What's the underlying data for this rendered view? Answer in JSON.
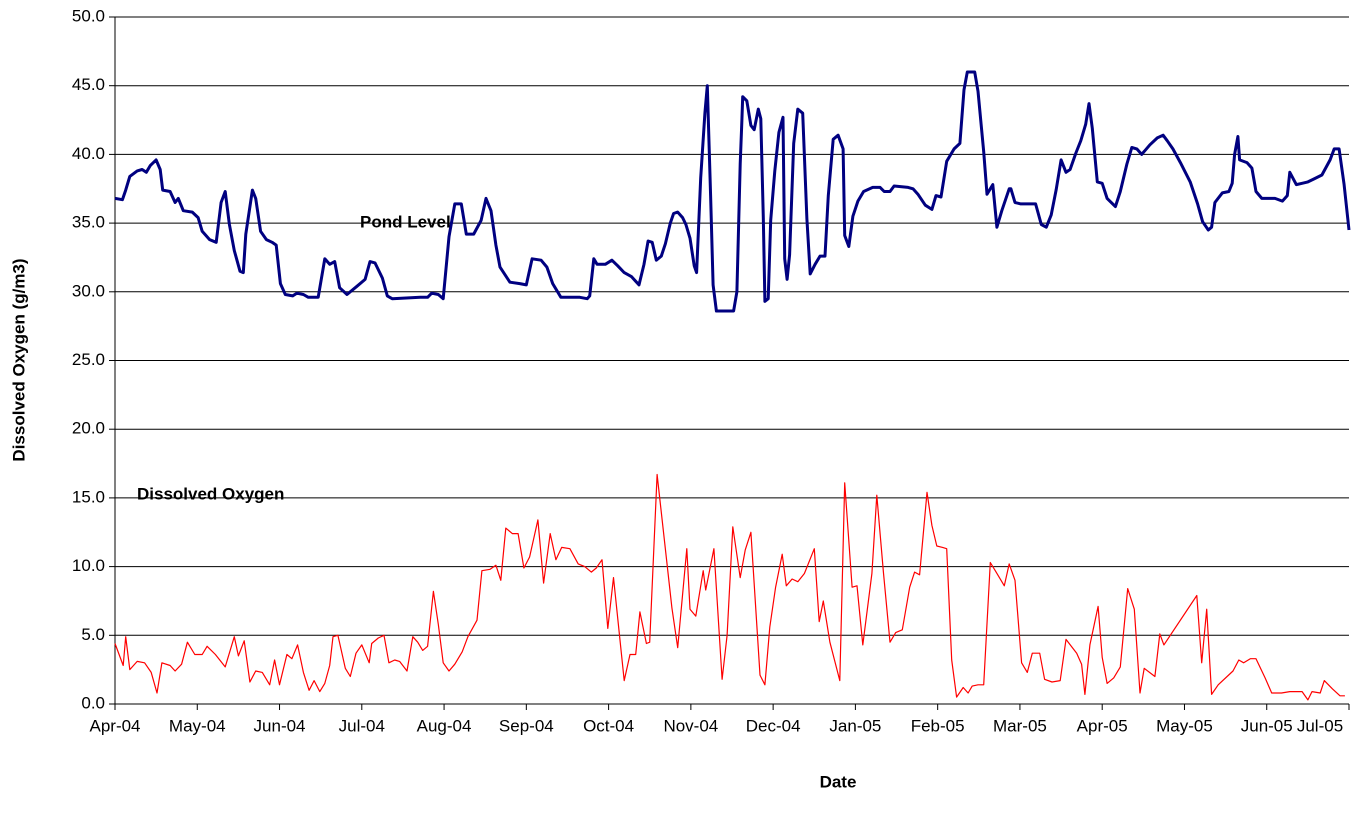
{
  "chart_data": {
    "type": "line",
    "xlabel": "Date",
    "ylabel": "Dissolved Oxygen (g/m3)",
    "xlim": [
      0,
      15
    ],
    "ylim": [
      0,
      50
    ],
    "xticks": [
      {
        "value": 0,
        "label": "Apr-04"
      },
      {
        "value": 1,
        "label": "May-04"
      },
      {
        "value": 2,
        "label": "Jun-04"
      },
      {
        "value": 3,
        "label": "Jul-04"
      },
      {
        "value": 4,
        "label": "Aug-04"
      },
      {
        "value": 5,
        "label": "Sep-04"
      },
      {
        "value": 6,
        "label": "Oct-04"
      },
      {
        "value": 7,
        "label": "Nov-04"
      },
      {
        "value": 8,
        "label": "Dec-04"
      },
      {
        "value": 9,
        "label": "Jan-05"
      },
      {
        "value": 10,
        "label": "Feb-05"
      },
      {
        "value": 11,
        "label": "Mar-05"
      },
      {
        "value": 12,
        "label": "Apr-05"
      },
      {
        "value": 13,
        "label": "May-05"
      },
      {
        "value": 14,
        "label": "Jun-05"
      },
      {
        "value": 15,
        "label": "Jul-05"
      }
    ],
    "yticks": [
      {
        "value": 0,
        "label": "0.0"
      },
      {
        "value": 5,
        "label": "5.0"
      },
      {
        "value": 10,
        "label": "10.0"
      },
      {
        "value": 15,
        "label": "15.0"
      },
      {
        "value": 20,
        "label": "20.0"
      },
      {
        "value": 25,
        "label": "25.0"
      },
      {
        "value": 30,
        "label": "30.0"
      },
      {
        "value": 35,
        "label": "35.0"
      },
      {
        "value": 40,
        "label": "40.0"
      },
      {
        "value": 45,
        "label": "45.0"
      },
      {
        "value": 50,
        "label": "50.0"
      }
    ],
    "grid": true,
    "series": [
      {
        "name": "Pond Level",
        "color": "#000080",
        "x": [
          0,
          0.09,
          0.13,
          0.18,
          0.27,
          0.33,
          0.38,
          0.43,
          0.5,
          0.55,
          0.58,
          0.67,
          0.73,
          0.77,
          0.83,
          0.94,
          1.01,
          1.06,
          1.15,
          1.23,
          1.29,
          1.34,
          1.39,
          1.45,
          1.52,
          1.56,
          1.59,
          1.67,
          1.71,
          1.77,
          1.84,
          1.91,
          1.96,
          2.01,
          2.07,
          2.16,
          2.21,
          2.29,
          2.35,
          2.47,
          2.55,
          2.61,
          2.67,
          2.73,
          2.82,
          2.94,
          3.04,
          3.1,
          3.16,
          3.25,
          3.31,
          3.37,
          3.71,
          3.8,
          3.85,
          3.93,
          3.99,
          4.06,
          4.13,
          4.21,
          4.27,
          4.36,
          4.45,
          4.51,
          4.57,
          4.63,
          4.68,
          4.8,
          4.92,
          5,
          5.07,
          5.18,
          5.25,
          5.32,
          5.42,
          5.65,
          5.74,
          5.77,
          5.82,
          5.86,
          5.96,
          6.04,
          6.11,
          6.19,
          6.28,
          6.37,
          6.43,
          6.48,
          6.53,
          6.58,
          6.64,
          6.69,
          6.75,
          6.79,
          6.84,
          6.9,
          6.94,
          6.99,
          7.04,
          7.07,
          7.12,
          7.17,
          7.2,
          7.24,
          7.27,
          7.31,
          7.41,
          7.52,
          7.56,
          7.6,
          7.62,
          7.63,
          7.68,
          7.73,
          7.77,
          7.82,
          7.85,
          7.88,
          7.9,
          7.94,
          7.97,
          8.02,
          8.07,
          8.12,
          8.14,
          8.17,
          8.2,
          8.25,
          8.3,
          8.36,
          8.41,
          8.45,
          8.51,
          8.57,
          8.63,
          8.67,
          8.73,
          8.79,
          8.85,
          8.87,
          8.92,
          8.97,
          9.03,
          9.1,
          9.21,
          9.3,
          9.35,
          9.42,
          9.47,
          9.64,
          9.7,
          9.76,
          9.85,
          9.93,
          9.98,
          10.04,
          10.11,
          10.2,
          10.27,
          10.32,
          10.36,
          10.45,
          10.49,
          10.56,
          10.6,
          10.64,
          10.67,
          10.72,
          10.78,
          10.87,
          10.89,
          10.94,
          11.01,
          11.12,
          11.19,
          11.26,
          11.32,
          11.38,
          11.44,
          11.5,
          11.56,
          11.61,
          11.68,
          11.74,
          11.8,
          11.84,
          11.88,
          11.94,
          12,
          12.06,
          12.16,
          12.22,
          12.3,
          12.36,
          12.42,
          12.48,
          12.58,
          12.67,
          12.74,
          12.79,
          12.86,
          12.95,
          13.07,
          13.16,
          13.22,
          13.29,
          13.33,
          13.37,
          13.46,
          13.54,
          13.58,
          13.61,
          13.65,
          13.67,
          13.76,
          13.82,
          13.87,
          13.94,
          14.1,
          14.19,
          14.25,
          14.28,
          14.36,
          14.43,
          14.5,
          14.57,
          14.67,
          14.77,
          14.82,
          14.88,
          14.94,
          15
        ],
        "values": [
          36.8,
          36.7,
          37.4,
          38.4,
          38.8,
          38.9,
          38.7,
          39.2,
          39.6,
          38.9,
          37.4,
          37.3,
          36.5,
          36.8,
          35.9,
          35.8,
          35.4,
          34.4,
          33.8,
          33.6,
          36.5,
          37.3,
          34.9,
          33.0,
          31.5,
          31.4,
          34.2,
          37.4,
          36.8,
          34.4,
          33.8,
          33.6,
          33.4,
          30.6,
          29.8,
          29.7,
          29.9,
          29.8,
          29.6,
          29.6,
          32.4,
          32.0,
          32.2,
          30.3,
          29.8,
          30.4,
          30.9,
          32.2,
          32.1,
          31.0,
          29.7,
          29.5,
          29.6,
          29.6,
          29.9,
          29.8,
          29.5,
          34.0,
          36.4,
          36.4,
          34.2,
          34.2,
          35.2,
          36.8,
          35.9,
          33.4,
          31.8,
          30.7,
          30.6,
          30.5,
          32.4,
          32.3,
          31.8,
          30.6,
          29.6,
          29.6,
          29.5,
          29.7,
          32.4,
          32.0,
          32.0,
          32.3,
          31.9,
          31.4,
          31.1,
          30.5,
          32.0,
          33.7,
          33.6,
          32.3,
          32.6,
          33.5,
          35.0,
          35.7,
          35.8,
          35.4,
          34.9,
          33.9,
          31.9,
          31.4,
          38.3,
          43.0,
          45.0,
          37.0,
          30.5,
          28.6,
          28.6,
          28.6,
          30.0,
          39.3,
          42.5,
          44.2,
          43.9,
          42.1,
          41.8,
          43.3,
          42.6,
          35.4,
          29.3,
          29.5,
          35.2,
          38.8,
          41.6,
          42.7,
          32.4,
          30.9,
          32.7,
          40.8,
          43.3,
          43.0,
          35.3,
          31.3,
          32.0,
          32.6,
          32.6,
          37.0,
          41.1,
          41.4,
          40.4,
          34.1,
          33.3,
          35.5,
          36.6,
          37.3,
          37.6,
          37.6,
          37.3,
          37.3,
          37.7,
          37.6,
          37.5,
          37.1,
          36.3,
          36.0,
          37.0,
          36.9,
          39.5,
          40.4,
          40.8,
          44.7,
          46.0,
          46.0,
          44.6,
          40.2,
          37.1,
          37.5,
          37.8,
          34.7,
          35.9,
          37.5,
          37.5,
          36.5,
          36.4,
          36.4,
          36.4,
          34.9,
          34.7,
          35.6,
          37.4,
          39.6,
          38.7,
          38.9,
          40.1,
          41.0,
          42.2,
          43.7,
          41.9,
          38.0,
          37.9,
          36.8,
          36.2,
          37.3,
          39.3,
          40.5,
          40.4,
          40.0,
          40.7,
          41.2,
          41.4,
          41.0,
          40.4,
          39.4,
          38.0,
          36.4,
          35.1,
          34.5,
          34.7,
          36.5,
          37.2,
          37.3,
          37.9,
          40.0,
          41.3,
          39.6,
          39.4,
          39.0,
          37.3,
          36.8,
          36.8,
          36.6,
          37.0,
          38.7,
          37.8,
          37.9,
          38.0,
          38.2,
          38.5,
          39.6,
          40.4,
          40.4,
          37.8,
          34.5
        ]
      },
      {
        "name": "Dissolved Oxygen",
        "color": "#ff0000",
        "x": [
          0,
          0.1,
          0.13,
          0.18,
          0.27,
          0.36,
          0.44,
          0.51,
          0.57,
          0.67,
          0.73,
          0.81,
          0.88,
          0.97,
          1.06,
          1.12,
          1.22,
          1.34,
          1.45,
          1.5,
          1.57,
          1.64,
          1.71,
          1.79,
          1.88,
          1.94,
          2,
          2.09,
          2.15,
          2.22,
          2.29,
          2.36,
          2.42,
          2.49,
          2.55,
          2.61,
          2.65,
          2.71,
          2.8,
          2.86,
          2.93,
          3,
          3.09,
          3.12,
          3.2,
          3.27,
          3.33,
          3.4,
          3.46,
          3.55,
          3.62,
          3.68,
          3.74,
          3.8,
          3.87,
          3.93,
          3.99,
          4.06,
          4.13,
          4.22,
          4.29,
          4.4,
          4.46,
          4.56,
          4.63,
          4.69,
          4.75,
          4.83,
          4.9,
          4.97,
          5.04,
          5.14,
          5.21,
          5.29,
          5.36,
          5.43,
          5.53,
          5.63,
          5.71,
          5.79,
          5.85,
          5.92,
          5.99,
          6.06,
          6.19,
          6.26,
          6.33,
          6.38,
          6.46,
          6.5,
          6.59,
          6.77,
          6.84,
          6.95,
          6.99,
          7.06,
          7.15,
          7.18,
          7.28,
          7.38,
          7.44,
          7.51,
          7.6,
          7.66,
          7.73,
          7.84,
          7.9,
          7.96,
          8.03,
          8.11,
          8.16,
          8.23,
          8.3,
          8.38,
          8.5,
          8.56,
          8.61,
          8.69,
          8.81,
          8.87,
          8.96,
          9.02,
          9.09,
          9.2,
          9.26,
          9.34,
          9.42,
          9.49,
          9.57,
          9.66,
          9.72,
          9.78,
          9.87,
          9.93,
          9.99,
          10.06,
          10.11,
          10.17,
          10.23,
          10.31,
          10.37,
          10.42,
          10.49,
          10.56,
          10.64,
          10.71,
          10.81,
          10.87,
          10.94,
          11.02,
          11.09,
          11.15,
          11.24,
          11.3,
          11.39,
          11.49,
          11.56,
          11.69,
          11.75,
          11.79,
          11.85,
          11.95,
          12,
          12.06,
          12.14,
          12.22,
          12.31,
          12.39,
          12.46,
          12.51,
          12.64,
          12.7,
          12.75,
          13.15,
          13.21,
          13.27,
          13.33,
          13.41,
          13.59,
          13.66,
          13.72,
          13.8,
          13.87,
          13.98,
          14.06,
          14.18,
          14.28,
          14.43,
          14.5,
          14.55,
          14.65,
          14.7,
          14.8,
          14.89,
          14.95
        ],
        "values": [
          4.4,
          2.8,
          4.9,
          2.5,
          3.1,
          3.0,
          2.3,
          0.8,
          3.0,
          2.8,
          2.4,
          2.9,
          4.5,
          3.6,
          3.6,
          4.2,
          3.6,
          2.7,
          4.9,
          3.5,
          4.6,
          1.6,
          2.4,
          2.3,
          1.4,
          3.2,
          1.4,
          3.6,
          3.3,
          4.3,
          2.3,
          1.0,
          1.7,
          0.9,
          1.5,
          2.8,
          4.9,
          5.0,
          2.6,
          2.0,
          3.7,
          4.3,
          3.0,
          4.4,
          4.8,
          5.0,
          3.0,
          3.2,
          3.1,
          2.4,
          4.9,
          4.5,
          3.9,
          4.2,
          8.2,
          5.8,
          3.0,
          2.4,
          2.9,
          3.8,
          4.9,
          6.1,
          9.7,
          9.8,
          10.1,
          9.0,
          12.8,
          12.4,
          12.4,
          9.9,
          10.7,
          13.4,
          8.8,
          12.4,
          10.5,
          11.4,
          11.3,
          10.2,
          10.0,
          9.6,
          9.9,
          10.5,
          5.5,
          9.2,
          1.7,
          3.6,
          3.6,
          6.7,
          4.4,
          4.5,
          16.7,
          7.0,
          4.1,
          11.3,
          6.9,
          6.4,
          9.7,
          8.3,
          11.3,
          1.8,
          5.0,
          12.9,
          9.2,
          11.2,
          12.5,
          2.1,
          1.4,
          5.6,
          8.5,
          10.9,
          8.6,
          9.1,
          8.9,
          9.5,
          11.3,
          6.0,
          7.5,
          4.5,
          1.7,
          16.1,
          8.5,
          8.6,
          4.3,
          9.5,
          15.2,
          9.6,
          4.5,
          5.2,
          5.4,
          8.5,
          9.6,
          9.4,
          15.4,
          13.0,
          11.5,
          11.4,
          11.3,
          3.2,
          0.5,
          1.2,
          0.8,
          1.3,
          1.4,
          1.4,
          10.3,
          9.6,
          8.6,
          10.2,
          9.0,
          3.0,
          2.3,
          3.7,
          3.7,
          1.8,
          1.6,
          1.7,
          4.7,
          3.7,
          2.9,
          0.7,
          4.3,
          7.1,
          3.4,
          1.5,
          1.9,
          2.7,
          8.4,
          6.9,
          0.8,
          2.6,
          2.0,
          5.1,
          4.3,
          7.9,
          3.0,
          6.9,
          0.7,
          1.4,
          2.4,
          3.2,
          3.0,
          3.3,
          3.3,
          1.9,
          0.8,
          0.8,
          0.9,
          0.9,
          0.3,
          0.9,
          0.8,
          1.7,
          1.1,
          0.6,
          0.6
        ]
      }
    ]
  }
}
